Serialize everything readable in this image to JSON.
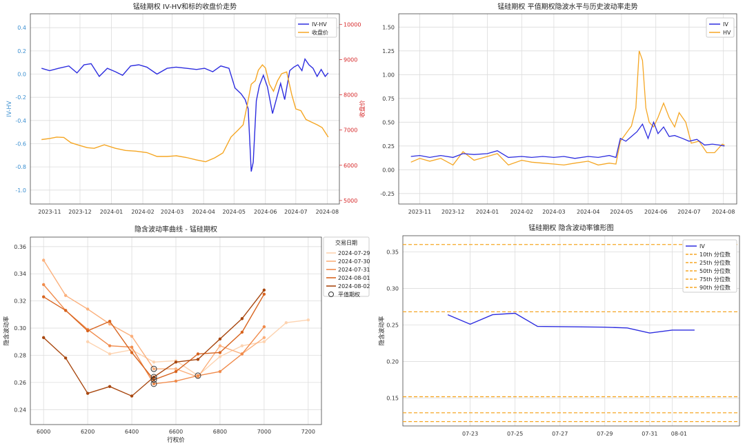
{
  "charts": [
    {
      "id": "tl",
      "type": "line",
      "title": "锰硅期权 IV-HV和标的收盘价走势",
      "ylabel": "IV-HV",
      "y2label": "收盘价",
      "xticks": [
        "2023-11",
        "2023-12",
        "2024-01",
        "2024-02",
        "2024-03",
        "2024-04",
        "2024-05",
        "2024-06",
        "2024-07",
        "2024-08"
      ],
      "yticks": [
        "0.4",
        "0.2",
        "0.0",
        "-0.2",
        "-0.4",
        "-0.6",
        "-0.8",
        "-1.0"
      ],
      "y2ticks": [
        "10000",
        "9000",
        "8000",
        "7000",
        "6000",
        "5000"
      ],
      "ylim": [
        -1.12,
        0.52
      ],
      "y2lim": [
        4900,
        10300
      ],
      "legend": [
        "IV-HV",
        "收盘价"
      ],
      "legend_position": "top-right",
      "series": [
        {
          "name": "IV-HV",
          "color": "#2c2cdf",
          "axis": "left",
          "x": [
            "2023-10-24",
            "2023-11-01",
            "2023-11-10",
            "2023-11-20",
            "2023-11-28",
            "2023-12-05",
            "2023-12-12",
            "2023-12-20",
            "2023-12-28",
            "2024-01-05",
            "2024-01-12",
            "2024-01-20",
            "2024-01-28",
            "2024-02-05",
            "2024-02-15",
            "2024-02-25",
            "2024-03-05",
            "2024-03-15",
            "2024-03-25",
            "2024-04-02",
            "2024-04-10",
            "2024-04-18",
            "2024-04-26",
            "2024-05-02",
            "2024-05-08",
            "2024-05-12",
            "2024-05-15",
            "2024-05-18",
            "2024-05-20",
            "2024-05-23",
            "2024-05-26",
            "2024-05-30",
            "2024-06-03",
            "2024-06-08",
            "2024-06-12",
            "2024-06-16",
            "2024-06-20",
            "2024-06-25",
            "2024-06-29",
            "2024-07-03",
            "2024-07-07",
            "2024-07-10",
            "2024-07-14",
            "2024-07-18",
            "2024-07-22",
            "2024-07-26",
            "2024-07-30",
            "2024-08-02"
          ],
          "values": [
            0.05,
            0.03,
            0.05,
            0.07,
            0.01,
            0.08,
            0.09,
            -0.02,
            0.05,
            0.02,
            -0.01,
            0.07,
            0.08,
            0.06,
            0.0,
            0.05,
            0.06,
            0.05,
            0.04,
            0.05,
            0.02,
            0.07,
            0.05,
            -0.12,
            -0.17,
            -0.22,
            -0.3,
            -0.84,
            -0.76,
            -0.23,
            -0.1,
            -0.01,
            -0.11,
            -0.34,
            -0.21,
            -0.08,
            -0.22,
            0.03,
            0.06,
            0.08,
            0.03,
            0.13,
            0.08,
            0.05,
            -0.02,
            0.04,
            -0.02,
            0.01
          ]
        },
        {
          "name": "收盘价",
          "color": "#f5a623",
          "axis": "right",
          "x": [
            "2023-10-24",
            "2023-11-01",
            "2023-11-08",
            "2023-11-15",
            "2023-11-22",
            "2023-12-01",
            "2023-12-08",
            "2023-12-15",
            "2023-12-25",
            "2024-01-05",
            "2024-01-15",
            "2024-01-25",
            "2024-02-05",
            "2024-02-15",
            "2024-02-25",
            "2024-03-05",
            "2024-03-15",
            "2024-03-25",
            "2024-04-03",
            "2024-04-12",
            "2024-04-20",
            "2024-04-28",
            "2024-05-05",
            "2024-05-10",
            "2024-05-14",
            "2024-05-18",
            "2024-05-22",
            "2024-05-25",
            "2024-05-29",
            "2024-06-01",
            "2024-06-05",
            "2024-06-09",
            "2024-06-13",
            "2024-06-17",
            "2024-06-22",
            "2024-06-27",
            "2024-07-01",
            "2024-07-06",
            "2024-07-11",
            "2024-07-16",
            "2024-07-22",
            "2024-07-27",
            "2024-08-02"
          ],
          "values": [
            6730,
            6760,
            6800,
            6790,
            6640,
            6560,
            6500,
            6480,
            6580,
            6480,
            6420,
            6400,
            6360,
            6250,
            6250,
            6270,
            6220,
            6150,
            6100,
            6210,
            6350,
            6800,
            7000,
            7150,
            7700,
            8300,
            8400,
            8700,
            8850,
            8760,
            8300,
            8100,
            8400,
            8600,
            8650,
            8000,
            7600,
            7550,
            7300,
            7230,
            7150,
            7070,
            6800
          ]
        }
      ]
    },
    {
      "id": "tr",
      "type": "line",
      "title": "锰硅期权 平值期权隐波水平与历史波动率走势",
      "xticks": [
        "2023-11",
        "2023-12",
        "2024-01",
        "2024-02",
        "2024-03",
        "2024-04",
        "2024-05",
        "2024-06",
        "2024-07",
        "2024-08"
      ],
      "yticks": [
        "1.50",
        "1.25",
        "1.00",
        "0.75",
        "0.50",
        "0.25",
        "0.00",
        "-0.25"
      ],
      "ylim": [
        -0.36,
        1.64
      ],
      "legend": [
        "IV",
        "HV"
      ],
      "legend_position": "top-right",
      "series": [
        {
          "name": "IV",
          "color": "#2c2cdf",
          "x": [
            "2023-10-24",
            "2023-11-01",
            "2023-11-10",
            "2023-11-20",
            "2023-12-01",
            "2023-12-10",
            "2023-12-20",
            "2024-01-01",
            "2024-01-10",
            "2024-01-20",
            "2024-02-01",
            "2024-02-10",
            "2024-02-20",
            "2024-03-01",
            "2024-03-10",
            "2024-03-20",
            "2024-04-01",
            "2024-04-10",
            "2024-04-20",
            "2024-04-26",
            "2024-04-30",
            "2024-05-05",
            "2024-05-10",
            "2024-05-15",
            "2024-05-20",
            "2024-05-25",
            "2024-05-30",
            "2024-06-03",
            "2024-06-08",
            "2024-06-13",
            "2024-06-18",
            "2024-06-25",
            "2024-07-01",
            "2024-07-08",
            "2024-07-15",
            "2024-07-22",
            "2024-07-28",
            "2024-08-02"
          ],
          "values": [
            0.14,
            0.15,
            0.13,
            0.15,
            0.13,
            0.17,
            0.16,
            0.17,
            0.2,
            0.13,
            0.14,
            0.13,
            0.14,
            0.13,
            0.14,
            0.12,
            0.14,
            0.13,
            0.15,
            0.13,
            0.33,
            0.3,
            0.35,
            0.4,
            0.48,
            0.33,
            0.5,
            0.38,
            0.45,
            0.35,
            0.36,
            0.33,
            0.3,
            0.32,
            0.26,
            0.27,
            0.26,
            0.25
          ]
        },
        {
          "name": "HV",
          "color": "#f5a623",
          "x": [
            "2023-10-24",
            "2023-11-01",
            "2023-11-10",
            "2023-11-20",
            "2023-12-01",
            "2023-12-10",
            "2023-12-20",
            "2024-01-01",
            "2024-01-10",
            "2024-01-20",
            "2024-02-01",
            "2024-02-10",
            "2024-02-20",
            "2024-03-01",
            "2024-03-10",
            "2024-03-20",
            "2024-04-01",
            "2024-04-10",
            "2024-04-20",
            "2024-04-26",
            "2024-04-30",
            "2024-05-05",
            "2024-05-10",
            "2024-05-14",
            "2024-05-17",
            "2024-05-20",
            "2024-05-23",
            "2024-05-26",
            "2024-05-30",
            "2024-06-03",
            "2024-06-08",
            "2024-06-13",
            "2024-06-18",
            "2024-06-22",
            "2024-06-28",
            "2024-07-03",
            "2024-07-10",
            "2024-07-17",
            "2024-07-24",
            "2024-07-31",
            "2024-08-02"
          ],
          "values": [
            0.08,
            0.12,
            0.09,
            0.12,
            0.05,
            0.19,
            0.1,
            0.14,
            0.17,
            0.05,
            0.1,
            0.08,
            0.07,
            0.06,
            0.05,
            0.07,
            0.09,
            0.05,
            0.07,
            0.06,
            0.3,
            0.38,
            0.46,
            0.65,
            1.25,
            1.15,
            0.65,
            0.5,
            0.45,
            0.55,
            0.7,
            0.55,
            0.45,
            0.6,
            0.5,
            0.28,
            0.3,
            0.18,
            0.18,
            0.27,
            0.26
          ]
        }
      ]
    },
    {
      "id": "bl",
      "type": "line",
      "title": "隐含波动率曲线 - 锰硅期权",
      "xlabel": "行权价",
      "ylabel": "隐含波动率",
      "xticks": [
        "6000",
        "6200",
        "6400",
        "6600",
        "6800",
        "7000",
        "7200"
      ],
      "yticks": [
        "0.36",
        "0.34",
        "0.32",
        "0.30",
        "0.28",
        "0.26",
        "0.24"
      ],
      "xlim": [
        5940,
        7260
      ],
      "ylim": [
        0.229,
        0.367
      ],
      "legend_title": "交易日期",
      "legend": [
        "2024-07-29",
        "2024-07-30",
        "2024-07-31",
        "2024-08-01",
        "2024-08-02",
        "平值期权"
      ],
      "legend_position": "top-right",
      "series": [
        {
          "name": "2024-07-29",
          "color": "#fdd3b0",
          "x": [
            6200,
            6300,
            6400,
            6500,
            6600,
            6700,
            6800,
            6900,
            7000,
            7100,
            7200
          ],
          "values": [
            0.29,
            0.281,
            0.284,
            0.275,
            0.276,
            0.265,
            0.279,
            0.287,
            0.29,
            0.304,
            0.306
          ]
        },
        {
          "name": "2024-07-30",
          "color": "#fbb07c",
          "x": [
            6000,
            6100,
            6200,
            6300,
            6400,
            6500,
            6600,
            6700,
            6800,
            6900,
            7000
          ],
          "values": [
            0.35,
            0.324,
            0.314,
            0.303,
            0.294,
            0.27,
            0.27,
            0.264,
            0.287,
            0.281,
            0.293
          ]
        },
        {
          "name": "2024-07-31",
          "color": "#f08b4c",
          "x": [
            6000,
            6100,
            6200,
            6300,
            6400,
            6500,
            6600,
            6700,
            6800,
            6900,
            7000
          ],
          "values": [
            0.332,
            0.313,
            0.299,
            0.287,
            0.286,
            0.259,
            0.261,
            0.265,
            0.268,
            0.281,
            0.301
          ]
        },
        {
          "name": "2024-08-01",
          "color": "#d8641f",
          "x": [
            6000,
            6100,
            6200,
            6300,
            6400,
            6500,
            6600,
            6700,
            6800,
            6900,
            7000
          ],
          "values": [
            0.323,
            0.313,
            0.298,
            0.305,
            0.282,
            0.262,
            0.268,
            0.281,
            0.282,
            0.297,
            0.325
          ]
        },
        {
          "name": "2024-08-02",
          "color": "#a8470f",
          "x": [
            6000,
            6100,
            6200,
            6300,
            6400,
            6500,
            6600,
            6700,
            6800,
            6900,
            7000
          ],
          "values": [
            0.293,
            0.278,
            0.252,
            0.257,
            0.25,
            0.264,
            0.275,
            0.277,
            0.292,
            0.307,
            0.328
          ]
        }
      ],
      "atm_points": [
        {
          "x": 6500,
          "y": 0.27
        },
        {
          "x": 6500,
          "y": 0.264
        },
        {
          "x": 6500,
          "y": 0.262
        },
        {
          "x": 6500,
          "y": 0.259
        },
        {
          "x": 6700,
          "y": 0.265
        }
      ]
    },
    {
      "id": "br",
      "type": "line",
      "title": "锰硅期权 隐含波动率锥形图",
      "ylabel": "隐含波动率",
      "xticks": [
        "07-23",
        "07-25",
        "07-27",
        "07-29",
        "07-31",
        "08-01"
      ],
      "yticks": [
        "0.35",
        "0.30",
        "0.25",
        "0.20",
        "0.15"
      ],
      "ylim": [
        0.112,
        0.372
      ],
      "legend": [
        "IV",
        "10th 分位数",
        "25th 分位数",
        "50th 分位数",
        "75th 分位数",
        "90th 分位数"
      ],
      "legend_position": "top-right",
      "iv_series": {
        "name": "IV",
        "color": "#2c2cdf",
        "x": [
          "2024-07-22",
          "2024-07-23",
          "2024-07-24",
          "2024-07-25",
          "2024-07-26",
          "2024-07-29",
          "2024-07-30",
          "2024-07-31",
          "2024-08-01",
          "2024-08-02"
        ],
        "values": [
          0.264,
          0.251,
          0.264,
          0.266,
          0.248,
          0.247,
          0.246,
          0.239,
          0.243,
          0.243
        ]
      },
      "percentiles": [
        {
          "name": "10th 分位数",
          "value": 0.118
        },
        {
          "name": "25th 分位数",
          "value": 0.13
        },
        {
          "name": "50th 分位数",
          "value": 0.152
        },
        {
          "name": "75th 分位数",
          "value": 0.268
        },
        {
          "name": "90th 分位数",
          "value": 0.36
        }
      ],
      "percentile_color": "#f5a623"
    }
  ]
}
